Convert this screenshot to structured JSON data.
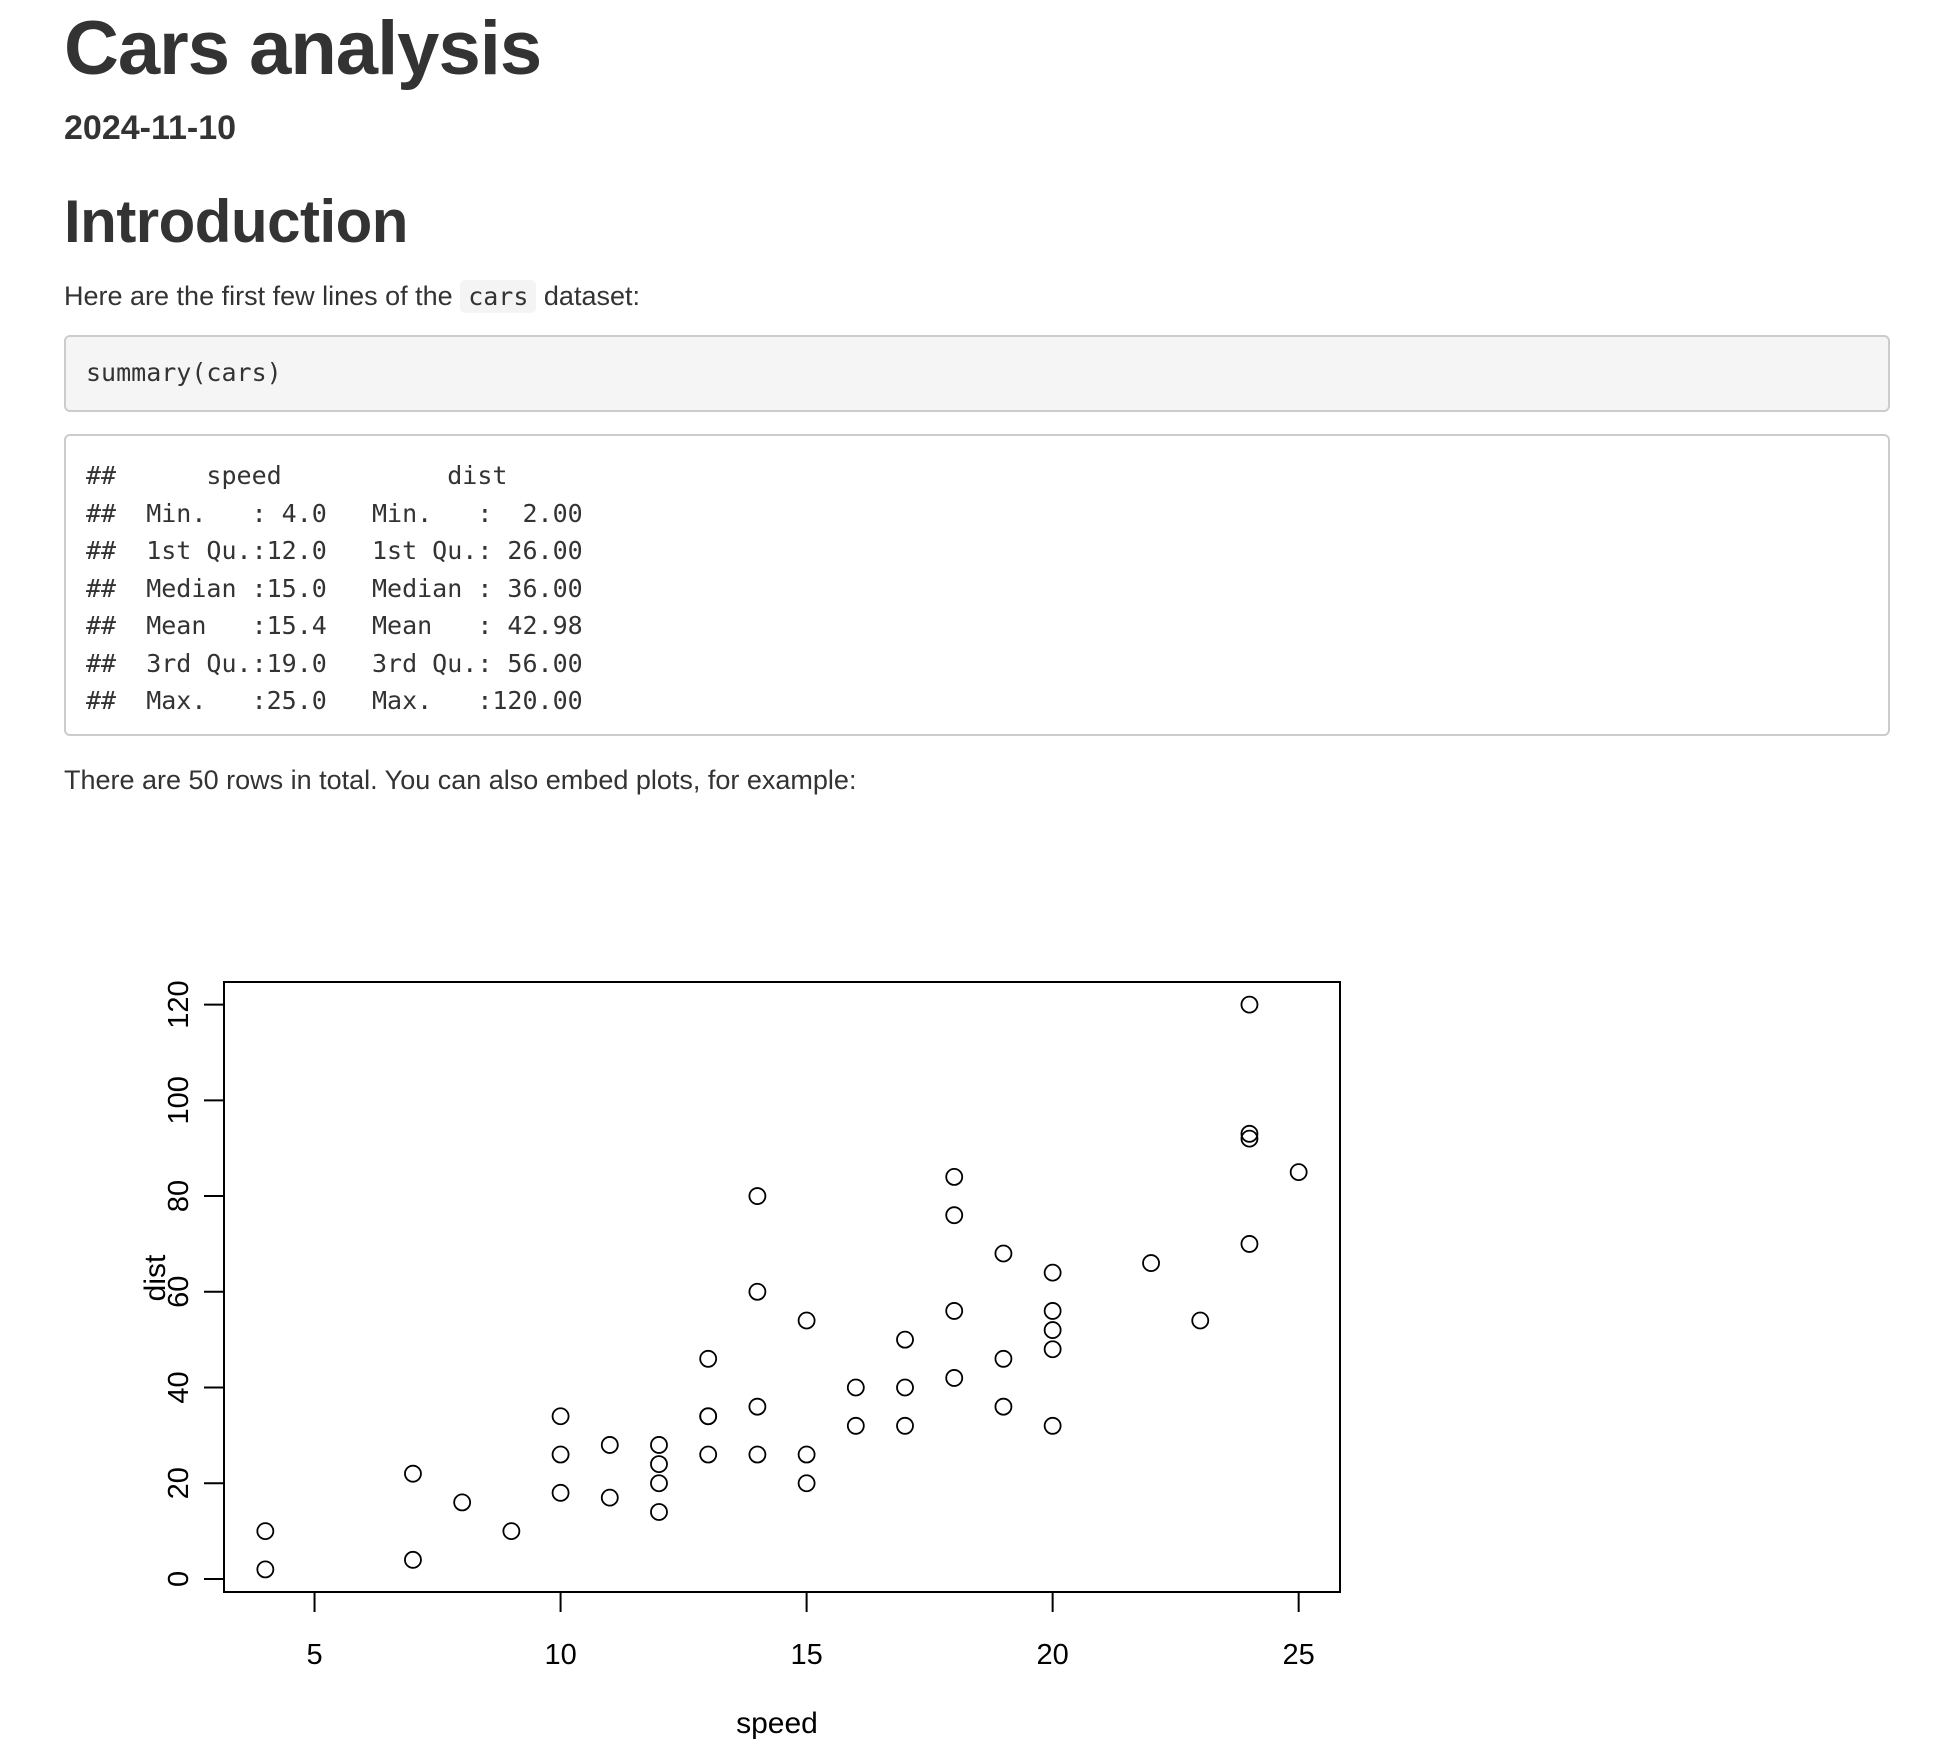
{
  "header": {
    "title": "Cars analysis",
    "date": "2024-11-10"
  },
  "intro": {
    "heading": "Introduction",
    "text_before": "Here are the first few lines of the ",
    "inline_code": "cars",
    "text_after": " dataset:"
  },
  "code_chunk": {
    "source": "summary(cars)",
    "output_lines": [
      "##      speed           dist       ",
      "##  Min.   : 4.0   Min.   :  2.00  ",
      "##  1st Qu.:12.0   1st Qu.: 26.00  ",
      "##  Median :15.0   Median : 36.00  ",
      "##  Mean   :15.4   Mean   : 42.98  ",
      "##  3rd Qu.:19.0   3rd Qu.: 56.00  ",
      "##  Max.   :25.0   Max.   :120.00  "
    ]
  },
  "outro": {
    "text": "There are 50 rows in total. You can also embed plots, for example:"
  },
  "chart_data": {
    "type": "scatter",
    "xlabel": "speed",
    "ylabel": "dist",
    "x_ticks": [
      5,
      10,
      15,
      20,
      25
    ],
    "y_ticks": [
      0,
      20,
      40,
      60,
      80,
      100,
      120
    ],
    "xlim": [
      3.16,
      25.84
    ],
    "ylim": [
      -2.72,
      124.72
    ],
    "grid": false,
    "legend": "none",
    "marker": "open-circle",
    "color": "#000000",
    "points": [
      [
        4,
        2
      ],
      [
        4,
        10
      ],
      [
        7,
        4
      ],
      [
        7,
        22
      ],
      [
        8,
        16
      ],
      [
        9,
        10
      ],
      [
        10,
        18
      ],
      [
        10,
        26
      ],
      [
        10,
        34
      ],
      [
        11,
        17
      ],
      [
        11,
        28
      ],
      [
        12,
        14
      ],
      [
        12,
        20
      ],
      [
        12,
        24
      ],
      [
        12,
        28
      ],
      [
        13,
        26
      ],
      [
        13,
        34
      ],
      [
        13,
        34
      ],
      [
        13,
        46
      ],
      [
        14,
        26
      ],
      [
        14,
        36
      ],
      [
        14,
        60
      ],
      [
        14,
        80
      ],
      [
        15,
        20
      ],
      [
        15,
        26
      ],
      [
        15,
        54
      ],
      [
        16,
        32
      ],
      [
        16,
        40
      ],
      [
        17,
        32
      ],
      [
        17,
        40
      ],
      [
        17,
        50
      ],
      [
        18,
        42
      ],
      [
        18,
        56
      ],
      [
        18,
        76
      ],
      [
        18,
        84
      ],
      [
        19,
        36
      ],
      [
        19,
        46
      ],
      [
        19,
        68
      ],
      [
        20,
        32
      ],
      [
        20,
        48
      ],
      [
        20,
        52
      ],
      [
        20,
        56
      ],
      [
        20,
        64
      ],
      [
        22,
        66
      ],
      [
        23,
        54
      ],
      [
        24,
        70
      ],
      [
        24,
        92
      ],
      [
        24,
        93
      ],
      [
        24,
        120
      ],
      [
        25,
        85
      ]
    ]
  }
}
